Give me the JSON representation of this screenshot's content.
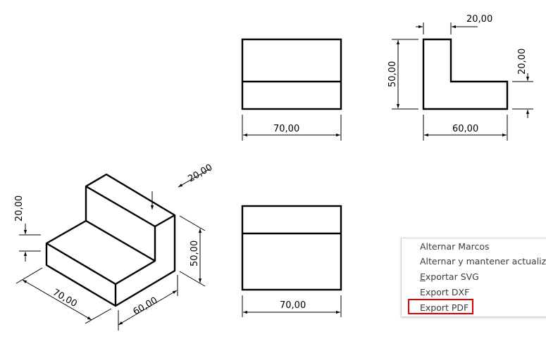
{
  "drawing": {
    "front_view": {
      "width_dim": "70,00"
    },
    "side_view": {
      "height_dim": "50,00",
      "wall_dim": "20,00",
      "step_dim": "20,00",
      "width_dim": "60,00"
    },
    "bottom_view": {
      "width_dim": "70,00"
    },
    "iso_view": {
      "top_dim": "20,00",
      "left_dim": "20,00",
      "height_dim": "50,00",
      "length_dim": "70,00",
      "depth_dim": "60,00"
    }
  },
  "context_menu": {
    "items": [
      {
        "label": "Alternar Marcos"
      },
      {
        "label": "Alternar y mantener actualizad"
      },
      {
        "accel": "E",
        "rest": "xportar SVG"
      },
      {
        "label": "Export DXF"
      },
      {
        "label": "Export PDF"
      }
    ],
    "highlight_color": "#e00000"
  }
}
